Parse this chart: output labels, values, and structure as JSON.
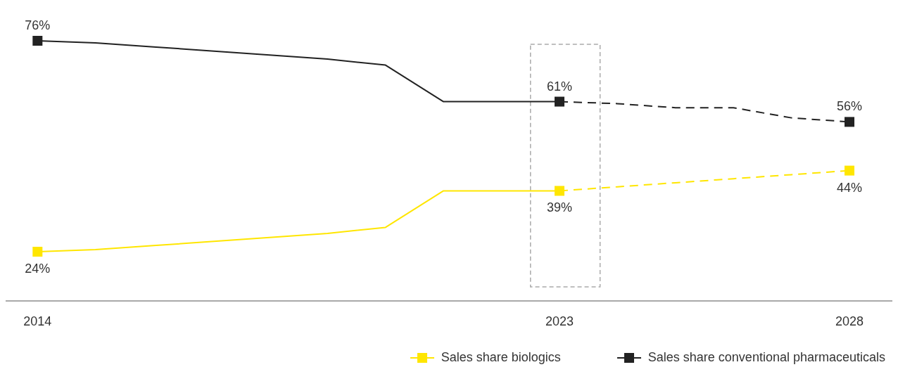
{
  "chart_data": {
    "type": "line",
    "x": [
      2014,
      2015,
      2016,
      2017,
      2018,
      2019,
      2020,
      2021,
      2022,
      2023,
      2024,
      2025,
      2026,
      2027,
      2028
    ],
    "xlim": [
      2013.45,
      2028.74
    ],
    "xticks": [
      2014,
      2023,
      2028
    ],
    "legend": "bottom right",
    "grid": false,
    "series": [
      {
        "name": "Sales share biologics",
        "color": "#ffe600",
        "line_style": "solid",
        "values": [
          24,
          24.5,
          25.5,
          26.5,
          27.5,
          28.5,
          30,
          39,
          39,
          39,
          null,
          null,
          null,
          null,
          null
        ]
      },
      {
        "color": "#ffe600",
        "line_style": "dashed",
        "values": [
          null,
          null,
          null,
          null,
          null,
          null,
          null,
          null,
          null,
          39,
          40,
          41,
          42,
          43,
          44
        ]
      },
      {
        "name": "Sales share conventional pharmaceuticals",
        "color": "#222222",
        "line_style": "solid",
        "values": [
          76,
          75.5,
          74.5,
          73.5,
          72.5,
          71.5,
          70,
          61,
          61,
          61,
          null,
          null,
          null,
          null,
          null
        ]
      },
      {
        "color": "#222222",
        "line_style": "dashed",
        "values": [
          null,
          null,
          null,
          null,
          null,
          null,
          null,
          null,
          null,
          61,
          60.5,
          59.5,
          59.5,
          57,
          56
        ]
      },
      {
        "type": "scatter",
        "marker": "square",
        "color": "#ffe600",
        "x": [
          2014,
          2023,
          2028
        ],
        "values": [
          24,
          39,
          44
        ],
        "value_labels": [
          "24%",
          "39%",
          "44%"
        ]
      },
      {
        "type": "scatter",
        "marker": "square",
        "color": "#222222",
        "x": [
          2014,
          2023,
          2028
        ],
        "values": [
          76,
          61,
          56
        ],
        "value_labels": [
          "76%",
          "61%",
          "56%"
        ]
      }
    ]
  }
}
